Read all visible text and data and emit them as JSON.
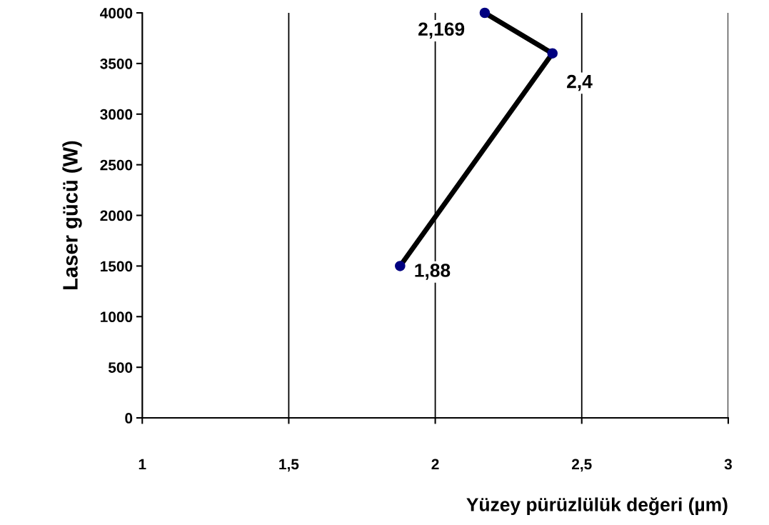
{
  "chart_data": {
    "type": "line",
    "xlabel": "Yüzey pürüzlülük değeri (µm)",
    "ylabel": "Laser gücü (W)",
    "x": [
      1.88,
      2.4,
      2.169
    ],
    "series": [
      {
        "color": "#000000",
        "colors": [
          "#000080",
          "#000080",
          "#000080"
        ],
        "values": [
          1500,
          3600,
          4000
        ]
      }
    ],
    "annotations": [
      {
        "text": "1,88",
        "x": 1.88,
        "y": 1500
      },
      {
        "text": "2,4",
        "x": 2.4,
        "y": 3600
      },
      {
        "text": "2,169",
        "x": 2.169,
        "y": 4000
      }
    ],
    "xlim": [
      1,
      3
    ],
    "xticks": [
      1,
      {
        "value": 1.5,
        "label": "1,5"
      },
      2,
      {
        "value": 2.5,
        "label": "2,5"
      },
      3
    ],
    "ylim": [
      0,
      4000
    ],
    "yticks": [
      0,
      500,
      1000,
      1500,
      2000,
      2500,
      3000,
      3500,
      4000
    ],
    "grid": "x",
    "marker": "circle",
    "line_style": "solid",
    "legend": false
  }
}
